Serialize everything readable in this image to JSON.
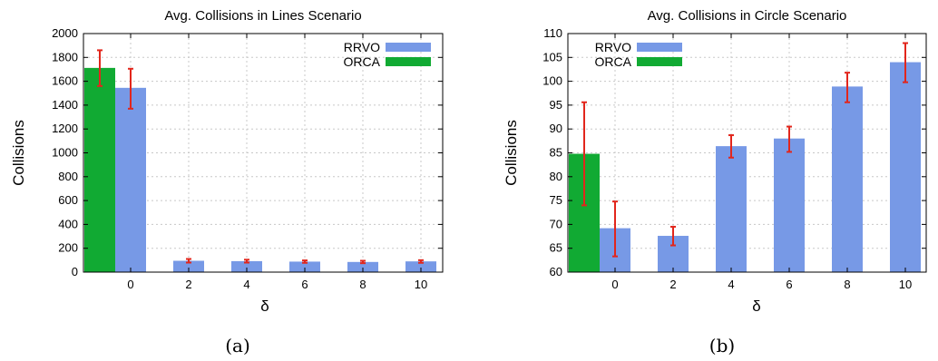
{
  "chart_data": [
    {
      "type": "bar",
      "title": "Avg. Collisions in Lines Scenario",
      "xlabel": "δ",
      "ylabel": "Collisions",
      "caption": "(a)",
      "ylim": [
        0,
        2000
      ],
      "yticks": [
        "0",
        "200",
        "400",
        "600",
        "800",
        "1000",
        "1200",
        "1400",
        "1600",
        "1800",
        "2000"
      ],
      "categories": [
        "0",
        "2",
        "4",
        "6",
        "8",
        "10"
      ],
      "grid": true,
      "legend_position": "top-right",
      "series": [
        {
          "name": "RRVO",
          "color": "#7799e6",
          "values": [
            1545,
            95,
            92,
            88,
            85,
            90
          ],
          "err_low": [
            1370,
            80,
            80,
            78,
            75,
            78
          ],
          "err_high": [
            1705,
            110,
            104,
            98,
            95,
            100
          ]
        },
        {
          "name": "ORCA",
          "color": "#11aa33",
          "value": 1712,
          "err_low": 1560,
          "err_high": 1860
        }
      ]
    },
    {
      "type": "bar",
      "title": "Avg. Collisions in Circle Scenario",
      "xlabel": "δ",
      "ylabel": "Collisions",
      "caption": "(b)",
      "ylim": [
        60,
        110
      ],
      "yticks": [
        "60",
        "65",
        "70",
        "75",
        "80",
        "85",
        "90",
        "95",
        "100",
        "105",
        "110"
      ],
      "categories": [
        "0",
        "2",
        "4",
        "6",
        "8",
        "10"
      ],
      "grid": true,
      "legend_position": "top-left",
      "series": [
        {
          "name": "RRVO",
          "color": "#7799e6",
          "values": [
            69.2,
            67.6,
            86.4,
            88.0,
            98.9,
            104.0
          ],
          "err_low": [
            63.3,
            65.6,
            84.0,
            85.2,
            95.6,
            99.8
          ],
          "err_high": [
            74.8,
            69.5,
            88.7,
            90.5,
            101.8,
            108.0
          ]
        },
        {
          "name": "ORCA",
          "color": "#11aa33",
          "value": 84.8,
          "err_low": 74.0,
          "err_high": 95.6
        }
      ]
    }
  ]
}
